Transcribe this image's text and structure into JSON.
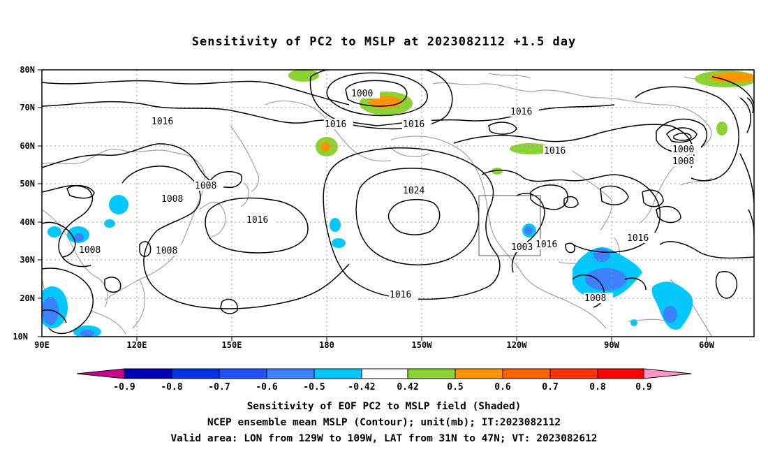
{
  "title": "Sensitivity of PC2 to MSLP at 2023082112 +1.5 day",
  "lat_labels": [
    "80N",
    "70N",
    "60N",
    "50N",
    "40N",
    "30N",
    "20N",
    "10N"
  ],
  "lon_labels": [
    "90E",
    "120E",
    "150E",
    "180",
    "150W",
    "120W",
    "90W",
    "60W"
  ],
  "contour_labels": {
    "a": "1000",
    "b": "1016",
    "c": "1016",
    "d": "1016",
    "e": "1016",
    "f": "1000",
    "g": "1008",
    "h": "1016",
    "i": "1008",
    "j": "1008",
    "k": "1024",
    "l": "1016",
    "m": "1008",
    "n": "1008",
    "o": "1003",
    "p": "1016",
    "q": "1016",
    "r": "1016",
    "s": "1008"
  },
  "colorbar": {
    "labels": [
      "-0.9",
      "-0.8",
      "-0.7",
      "-0.6",
      "-0.5",
      "-0.42",
      "0.42",
      "0.5",
      "0.6",
      "0.7",
      "0.8",
      "0.9"
    ],
    "colors": {
      "lt_minus_0_9": "#c8008c",
      "neg_0_9": "#0000b4",
      "neg_0_8": "#0032e6",
      "neg_0_7": "#1e50ff",
      "neg_0_6": "#3c82ff",
      "neg_0_5": "#00c8ff",
      "neutral": "#ffffff",
      "pos_0_42": "#8cd232",
      "pos_0_5": "#ff9600",
      "pos_0_6": "#ff6400",
      "pos_0_7": "#ff3200",
      "pos_0_8": "#ff0000",
      "gt_0_9": "#ff96c8"
    }
  },
  "captions": {
    "line1": "Sensitivity of EOF PC2 to MSLP field (Shaded)",
    "line2": "NCEP ensemble mean MSLP (Contour); unit(mb); IT:2023082112",
    "line3": "Valid area: LON from 129W to 109W, LAT from 31N to 47N; VT: 2023082612"
  }
}
